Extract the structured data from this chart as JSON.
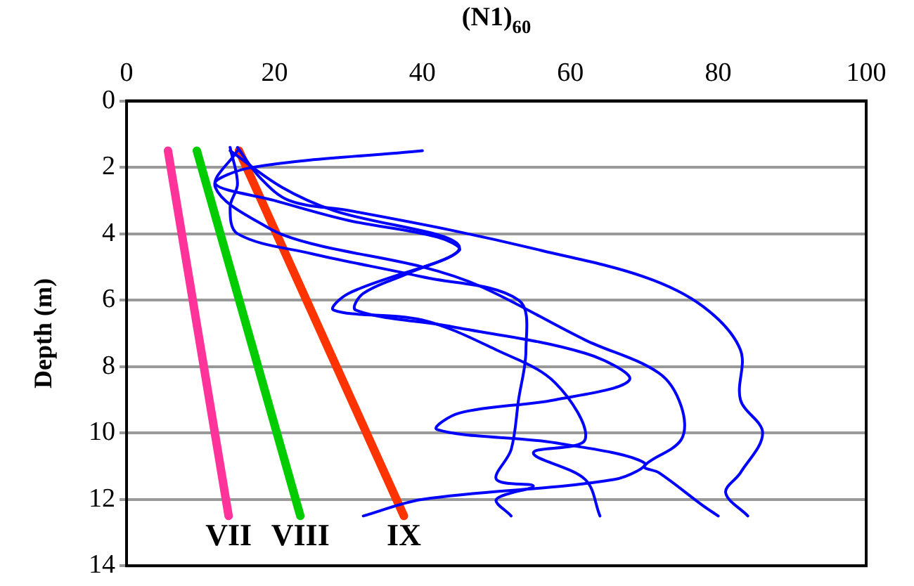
{
  "chart_data": {
    "type": "line",
    "xlabel": "(N1)$_{60}$",
    "ylabel": "Depth (m)",
    "xlim": [
      0,
      100
    ],
    "xticks": [
      0,
      20,
      40,
      60,
      80,
      100
    ],
    "ylim": [
      14,
      0
    ],
    "yticks": [
      0,
      2,
      4,
      6,
      8,
      10,
      12,
      14
    ],
    "grid": "y",
    "legend": false,
    "marker": "none",
    "line_style": "solid",
    "series": [
      {
        "color": "#0000ff",
        "x": [
          40,
          17,
          12,
          20,
          30,
          42,
          45,
          38,
          32,
          31,
          44,
          62,
          68,
          58,
          45,
          42,
          58,
          70,
          66,
          40,
          32
        ],
        "values": [
          1.5,
          2.0,
          2.5,
          3.0,
          3.6,
          4.1,
          4.5,
          5.2,
          5.8,
          6.3,
          6.8,
          7.6,
          8.4,
          9.0,
          9.4,
          9.9,
          10.3,
          10.9,
          11.4,
          12.0,
          12.5
        ]
      },
      {
        "color": "#0000ff",
        "x": [
          14,
          15,
          14,
          15,
          25,
          40,
          53,
          54,
          53,
          52,
          50,
          55,
          50,
          52
        ],
        "values": [
          1.4,
          2.5,
          3.2,
          4.0,
          4.6,
          5.3,
          6.0,
          7.5,
          9.0,
          10.5,
          11.4,
          11.6,
          12.0,
          12.5
        ]
      },
      {
        "color": "#0000ff",
        "x": [
          15,
          18,
          22,
          30,
          44,
          56,
          70,
          78,
          83,
          83,
          86,
          83,
          81,
          84
        ],
        "values": [
          1.4,
          2.3,
          3.0,
          3.3,
          3.9,
          4.5,
          5.3,
          6.2,
          7.5,
          9.0,
          10.0,
          11.2,
          11.8,
          12.5
        ]
      },
      {
        "color": "#0000ff",
        "x": [
          15,
          12,
          19,
          25,
          40,
          48,
          62,
          72,
          75,
          75,
          70,
          72,
          78,
          80
        ],
        "values": [
          1.5,
          2.6,
          3.8,
          4.3,
          5.0,
          5.6,
          7.2,
          8.2,
          9.2,
          10.2,
          11.0,
          11.2,
          12.2,
          12.5
        ]
      },
      {
        "color": "#0000ff",
        "x": [
          14,
          21,
          28,
          45,
          30,
          28,
          40,
          50,
          58,
          62,
          55,
          62,
          64
        ],
        "values": [
          1.5,
          2.6,
          3.3,
          4.4,
          5.8,
          6.3,
          6.6,
          7.5,
          8.5,
          10.2,
          10.6,
          11.4,
          12.5
        ]
      },
      {
        "name": "VII",
        "color": "#ff3399",
        "x": [
          5.6,
          13.8
        ],
        "values": [
          1.5,
          12.5
        ]
      },
      {
        "name": "VIII",
        "color": "#00cc00",
        "x": [
          9.5,
          23.5
        ],
        "values": [
          1.5,
          12.5
        ]
      },
      {
        "name": "IX",
        "color": "#ff3300",
        "x": [
          15.2,
          37.5
        ],
        "values": [
          1.5,
          12.5
        ]
      }
    ]
  }
}
